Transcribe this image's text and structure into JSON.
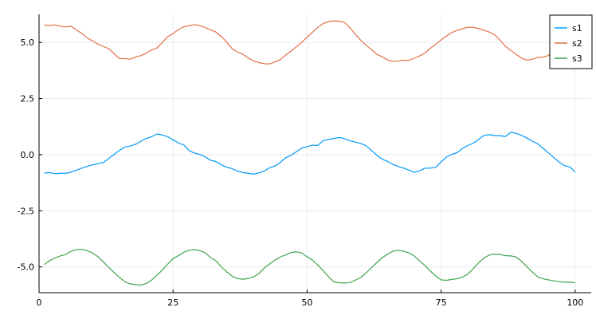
{
  "chart_data": {
    "type": "line",
    "title": "",
    "xlabel": "",
    "ylabel": "",
    "xlim": [
      0,
      103
    ],
    "ylim": [
      -6.15,
      6.25
    ],
    "x_ticks": [
      0,
      25,
      50,
      75,
      100
    ],
    "x_tick_labels": [
      "0",
      "25",
      "50",
      "75",
      "100"
    ],
    "y_ticks": [
      -5,
      -2.5,
      0,
      2.5,
      5
    ],
    "y_tick_labels": [
      "-5.0",
      "-2.5",
      "0.0",
      "2.5",
      "5.0"
    ],
    "grid": true,
    "legend_position": "top-right",
    "x_start": 1,
    "x_step": 1,
    "series": [
      {
        "name": "s1",
        "color": "#009af9",
        "values": [
          -0.82,
          -0.8,
          -0.85,
          -0.83,
          -0.83,
          -0.78,
          -0.69,
          -0.6,
          -0.52,
          -0.45,
          -0.4,
          -0.35,
          -0.17,
          0.01,
          0.19,
          0.34,
          0.38,
          0.46,
          0.6,
          0.72,
          0.8,
          0.92,
          0.88,
          0.8,
          0.66,
          0.52,
          0.43,
          0.18,
          0.07,
          0.01,
          -0.1,
          -0.25,
          -0.31,
          -0.45,
          -0.56,
          -0.62,
          -0.73,
          -0.8,
          -0.83,
          -0.87,
          -0.81,
          -0.73,
          -0.58,
          -0.51,
          -0.35,
          -0.14,
          -0.03,
          0.13,
          0.29,
          0.36,
          0.42,
          0.41,
          0.62,
          0.68,
          0.72,
          0.77,
          0.71,
          0.62,
          0.56,
          0.5,
          0.4,
          0.19,
          -0.02,
          -0.2,
          -0.3,
          -0.43,
          -0.53,
          -0.6,
          -0.69,
          -0.79,
          -0.72,
          -0.6,
          -0.6,
          -0.56,
          -0.32,
          -0.11,
          0.01,
          0.09,
          0.28,
          0.41,
          0.51,
          0.68,
          0.86,
          0.89,
          0.85,
          0.84,
          0.81,
          1.0,
          0.95,
          0.86,
          0.74,
          0.6,
          0.49,
          0.29,
          0.08,
          -0.12,
          -0.33,
          -0.49,
          -0.55,
          -0.77
        ]
      },
      {
        "name": "s2",
        "color": "#e26f46",
        "values": [
          5.78,
          5.76,
          5.78,
          5.72,
          5.69,
          5.72,
          5.55,
          5.4,
          5.2,
          5.06,
          4.92,
          4.82,
          4.72,
          4.5,
          4.28,
          4.28,
          4.25,
          4.35,
          4.41,
          4.52,
          4.66,
          4.75,
          5.0,
          5.26,
          5.39,
          5.58,
          5.69,
          5.75,
          5.79,
          5.75,
          5.66,
          5.56,
          5.46,
          5.26,
          5.02,
          4.72,
          4.58,
          4.47,
          4.31,
          4.18,
          4.1,
          4.05,
          4.04,
          4.13,
          4.23,
          4.43,
          4.61,
          4.8,
          5.01,
          5.23,
          5.45,
          5.67,
          5.84,
          5.93,
          5.96,
          5.94,
          5.89,
          5.65,
          5.36,
          5.1,
          4.87,
          4.68,
          4.47,
          4.36,
          4.22,
          4.16,
          4.17,
          4.21,
          4.2,
          4.3,
          4.4,
          4.53,
          4.74,
          4.91,
          5.11,
          5.28,
          5.44,
          5.54,
          5.61,
          5.68,
          5.67,
          5.62,
          5.54,
          5.46,
          5.34,
          5.1,
          4.83,
          4.64,
          4.47,
          4.3,
          4.21,
          4.25,
          4.33,
          4.34,
          4.42,
          4.62,
          4.81,
          5.0,
          5.18,
          5.27
        ]
      },
      {
        "name": "s3",
        "color": "#3ea44e",
        "values": [
          -4.9,
          -4.72,
          -4.6,
          -4.51,
          -4.45,
          -4.3,
          -4.23,
          -4.22,
          -4.28,
          -4.38,
          -4.55,
          -4.78,
          -5.03,
          -5.25,
          -5.47,
          -5.66,
          -5.76,
          -5.79,
          -5.81,
          -5.74,
          -5.59,
          -5.37,
          -5.14,
          -4.88,
          -4.63,
          -4.5,
          -4.35,
          -4.26,
          -4.23,
          -4.28,
          -4.37,
          -4.59,
          -4.73,
          -5.0,
          -5.22,
          -5.41,
          -5.52,
          -5.55,
          -5.52,
          -5.45,
          -5.3,
          -5.05,
          -4.87,
          -4.7,
          -4.56,
          -4.47,
          -4.36,
          -4.33,
          -4.38,
          -4.55,
          -4.7,
          -4.92,
          -5.17,
          -5.44,
          -5.67,
          -5.71,
          -5.72,
          -5.7,
          -5.59,
          -5.47,
          -5.27,
          -5.04,
          -4.81,
          -4.59,
          -4.44,
          -4.3,
          -4.26,
          -4.3,
          -4.38,
          -4.51,
          -4.74,
          -4.94,
          -5.19,
          -5.41,
          -5.58,
          -5.6,
          -5.56,
          -5.53,
          -5.45,
          -5.32,
          -5.08,
          -4.82,
          -4.6,
          -4.47,
          -4.43,
          -4.45,
          -4.5,
          -4.51,
          -4.56,
          -4.75,
          -4.99,
          -5.23,
          -5.44,
          -5.53,
          -5.58,
          -5.62,
          -5.66,
          -5.68,
          -5.68,
          -5.71
        ]
      }
    ]
  }
}
